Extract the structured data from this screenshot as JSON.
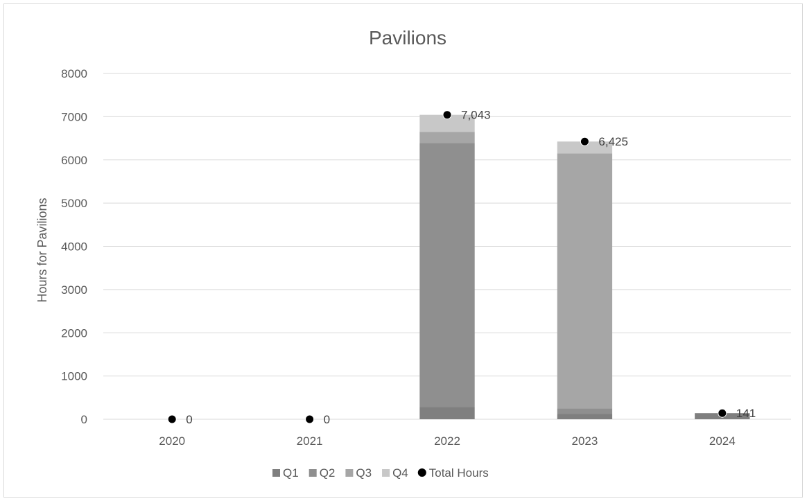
{
  "chart_data": {
    "type": "bar",
    "stacked": true,
    "title": "Pavilions",
    "xlabel": "",
    "ylabel": "Hours for Pavilions",
    "ylim": [
      0,
      8000
    ],
    "yticks": [
      "0",
      "1000",
      "2000",
      "3000",
      "4000",
      "5000",
      "6000",
      "7000",
      "8000"
    ],
    "grid": true,
    "legend_position": "bottom",
    "categories": [
      "2020",
      "2021",
      "2022",
      "2023",
      "2024"
    ],
    "series": [
      {
        "name": "Q1",
        "values": [
          0,
          0,
          280,
          120,
          141
        ],
        "color": "#7f7f7f"
      },
      {
        "name": "Q2",
        "values": [
          0,
          0,
          6110,
          130,
          0
        ],
        "color": "#8f8f8f"
      },
      {
        "name": "Q3",
        "values": [
          0,
          0,
          260,
          5900,
          0
        ],
        "color": "#a6a6a6"
      },
      {
        "name": "Q4",
        "values": [
          0,
          0,
          393,
          275,
          0
        ],
        "color": "#c8c8c8"
      }
    ],
    "total_series": {
      "name": "Total Hours",
      "values": [
        0,
        0,
        7043,
        6425,
        141
      ],
      "labels": [
        "0",
        "0",
        "7,043",
        "6,425",
        "141"
      ],
      "color": "#000000"
    }
  }
}
